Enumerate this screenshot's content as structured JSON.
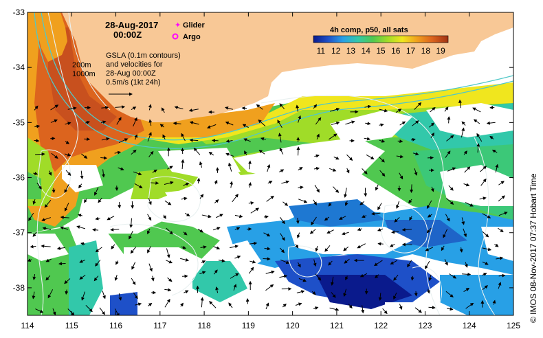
{
  "header": {
    "date": "28-Aug-2017",
    "time": "00:00Z"
  },
  "legend": {
    "glider_label": "Glider",
    "argo_label": "Argo",
    "glider_color": "#ff00ff",
    "argo_color": "#ff00ff"
  },
  "notes": {
    "line1": "GSLA (0.1m contours)",
    "line2": "and velocities for",
    "line3": "28-Aug 00:00Z",
    "line4": "0.5m/s (1kt 24h)"
  },
  "depth_labels": {
    "d200": "200m",
    "d1000": "1000m"
  },
  "colorbar": {
    "title": "4h comp, p50, all sats",
    "ticks": [
      "11",
      "12",
      "13",
      "14",
      "15",
      "16",
      "17",
      "18",
      "19"
    ],
    "min": 10.5,
    "max": 19.5,
    "stops": [
      "#0a1a8c",
      "#1e50c8",
      "#28a0e6",
      "#32c8aa",
      "#50c850",
      "#a0dc28",
      "#f0e61e",
      "#f0a01e",
      "#dc641e",
      "#a03214"
    ]
  },
  "axes": {
    "x_ticks": [
      "114",
      "115",
      "116",
      "117",
      "118",
      "119",
      "120",
      "121",
      "122",
      "123",
      "124",
      "125"
    ],
    "y_ticks": [
      "-33",
      "-34",
      "-35",
      "-36",
      "-37",
      "-38"
    ],
    "lon_range": [
      114,
      125
    ],
    "lat_range": [
      -38.5,
      -33
    ]
  },
  "credit": "© IMOS 08-Nov-2017 07:37 Hobart Time",
  "colors": {
    "land": "#f8c896",
    "no_data": "#ffffff",
    "bathymetry": "#50c8c8",
    "sla_contour": "#e8f0f0"
  }
}
